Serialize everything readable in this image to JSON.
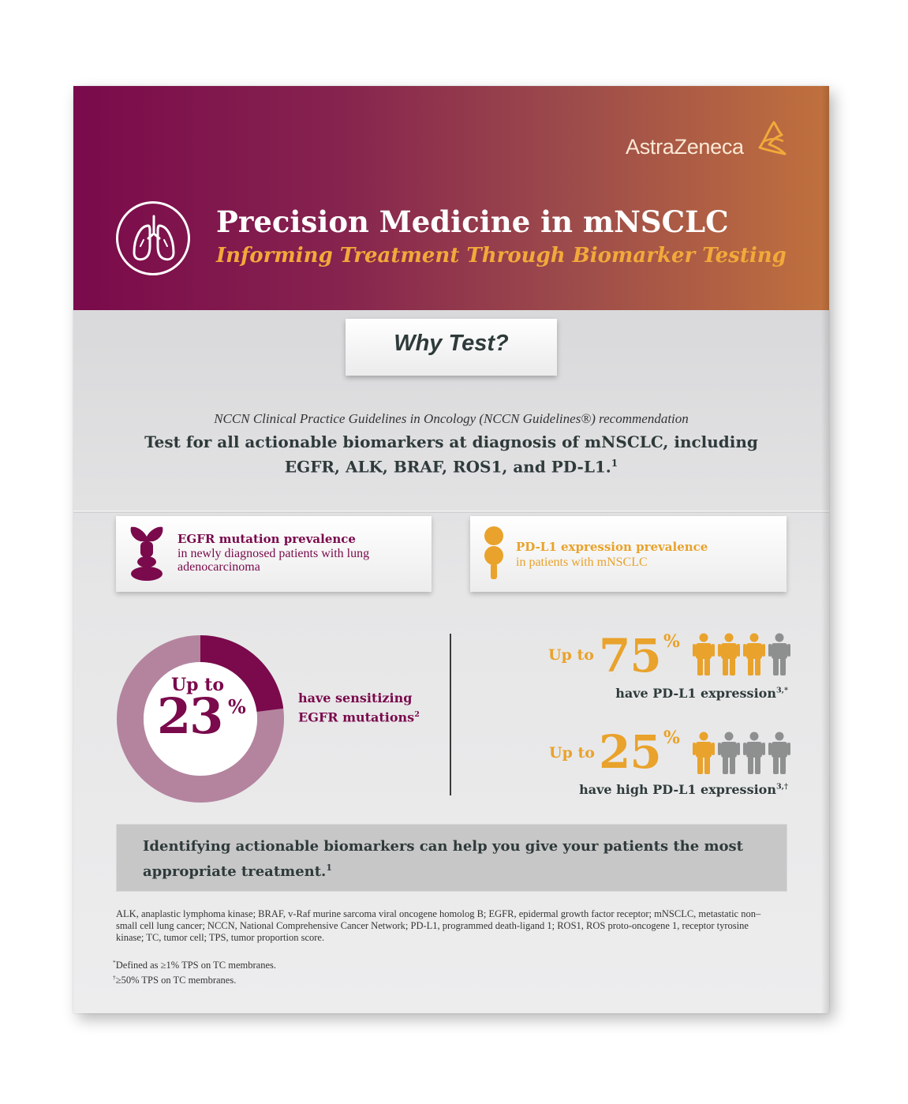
{
  "brand": {
    "name": "AstraZeneca",
    "mark_color": "#f2a93a"
  },
  "header": {
    "title": "Precision Medicine in mNSCLC",
    "subtitle": "Informing Treatment Through Biomarker Testing",
    "icon": "lungs-icon"
  },
  "why": {
    "label": "Why Test?"
  },
  "recommendation": {
    "source": "NCCN Clinical Practice Guidelines in Oncology (NCCN Guidelines®) recommendation",
    "text": "Test for all actionable biomarkers at diagnosis of mNSCLC, including EGFR, ALK, BRAF, ROS1, and PD-L1.",
    "ref": "1"
  },
  "egfr": {
    "title": "EGFR mutation prevalence",
    "subtitle": "in newly diagnosed patients with lung adenocarcinoma",
    "icon": "egfr-receptor-icon",
    "upto": "Up to",
    "value": "23",
    "pct": "%",
    "fraction": 0.23,
    "caption": "have sensitizing EGFR mutations",
    "ref": "2",
    "color": "#7a0a4c"
  },
  "pdl1": {
    "title": "PD-L1 expression prevalence",
    "subtitle": "in patients with mNSCLC",
    "icon": "pd-l1-icon",
    "color": "#e9a22b",
    "stats": [
      {
        "upto": "Up to",
        "value": "75",
        "pct": "%",
        "highlighted_of_4": 3,
        "caption": "have PD-L1 expression",
        "ref": "3,*"
      },
      {
        "upto": "Up to",
        "value": "25",
        "pct": "%",
        "highlighted_of_4": 1,
        "caption": "have high PD-L1 expression",
        "ref": "3,†"
      }
    ]
  },
  "conclusion": {
    "text": "Identifying actionable biomarkers can help you give your patients the most appropriate treatment.",
    "ref": "1"
  },
  "abbreviations": "ALK, anaplastic lymphoma kinase; BRAF, v-Raf murine sarcoma viral oncogene homolog B; EGFR, epidermal growth factor receptor; mNSCLC, metastatic non–small cell lung cancer; NCCN, National Comprehensive Cancer Network; PD-L1, programmed death-ligand 1; ROS1, ROS proto-oncogene 1, receptor tyrosine kinase; TC, tumor cell; TPS, tumor proportion score.",
  "footnotes": [
    {
      "mark": "*",
      "text": "Defined as ≥1% TPS on TC membranes."
    },
    {
      "mark": "†",
      "text": "≥50% TPS on TC membranes."
    }
  ]
}
